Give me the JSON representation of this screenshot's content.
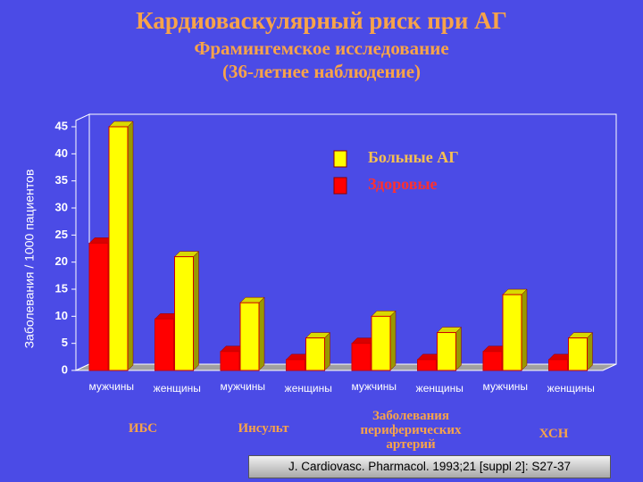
{
  "chart_data": {
    "type": "bar",
    "title": "Кардиоваскулярный риск при АГ",
    "subtitle": [
      "Фрамингемское исследование",
      "(36-летнее наблюдение)"
    ],
    "y_label": "Заболевания / 1000  пациентов",
    "categories": [
      "мужчины",
      "женщины",
      "мужчины",
      "женщины",
      "мужчины",
      "женщины",
      "мужчины",
      "женщины"
    ],
    "groups": [
      "ИБС",
      "Инсульт",
      "Заболевания периферических артерий",
      "ХСН"
    ],
    "series": [
      {
        "name": "Больные АГ",
        "color": "#ffff00",
        "values": [
          45,
          21,
          12.5,
          6,
          10,
          7,
          14,
          6
        ]
      },
      {
        "name": "Здоровые",
        "color": "#ff0000",
        "values": [
          23.5,
          9.5,
          3.5,
          2,
          5,
          2,
          3.5,
          2
        ]
      }
    ],
    "ylim": [
      0,
      45
    ],
    "yticks": [
      0,
      5,
      10,
      15,
      20,
      25,
      30,
      35,
      40,
      45
    ],
    "source": "J. Cardiovasc. Pharmacol. 1993;21 [suppl 2]: S27-37"
  }
}
